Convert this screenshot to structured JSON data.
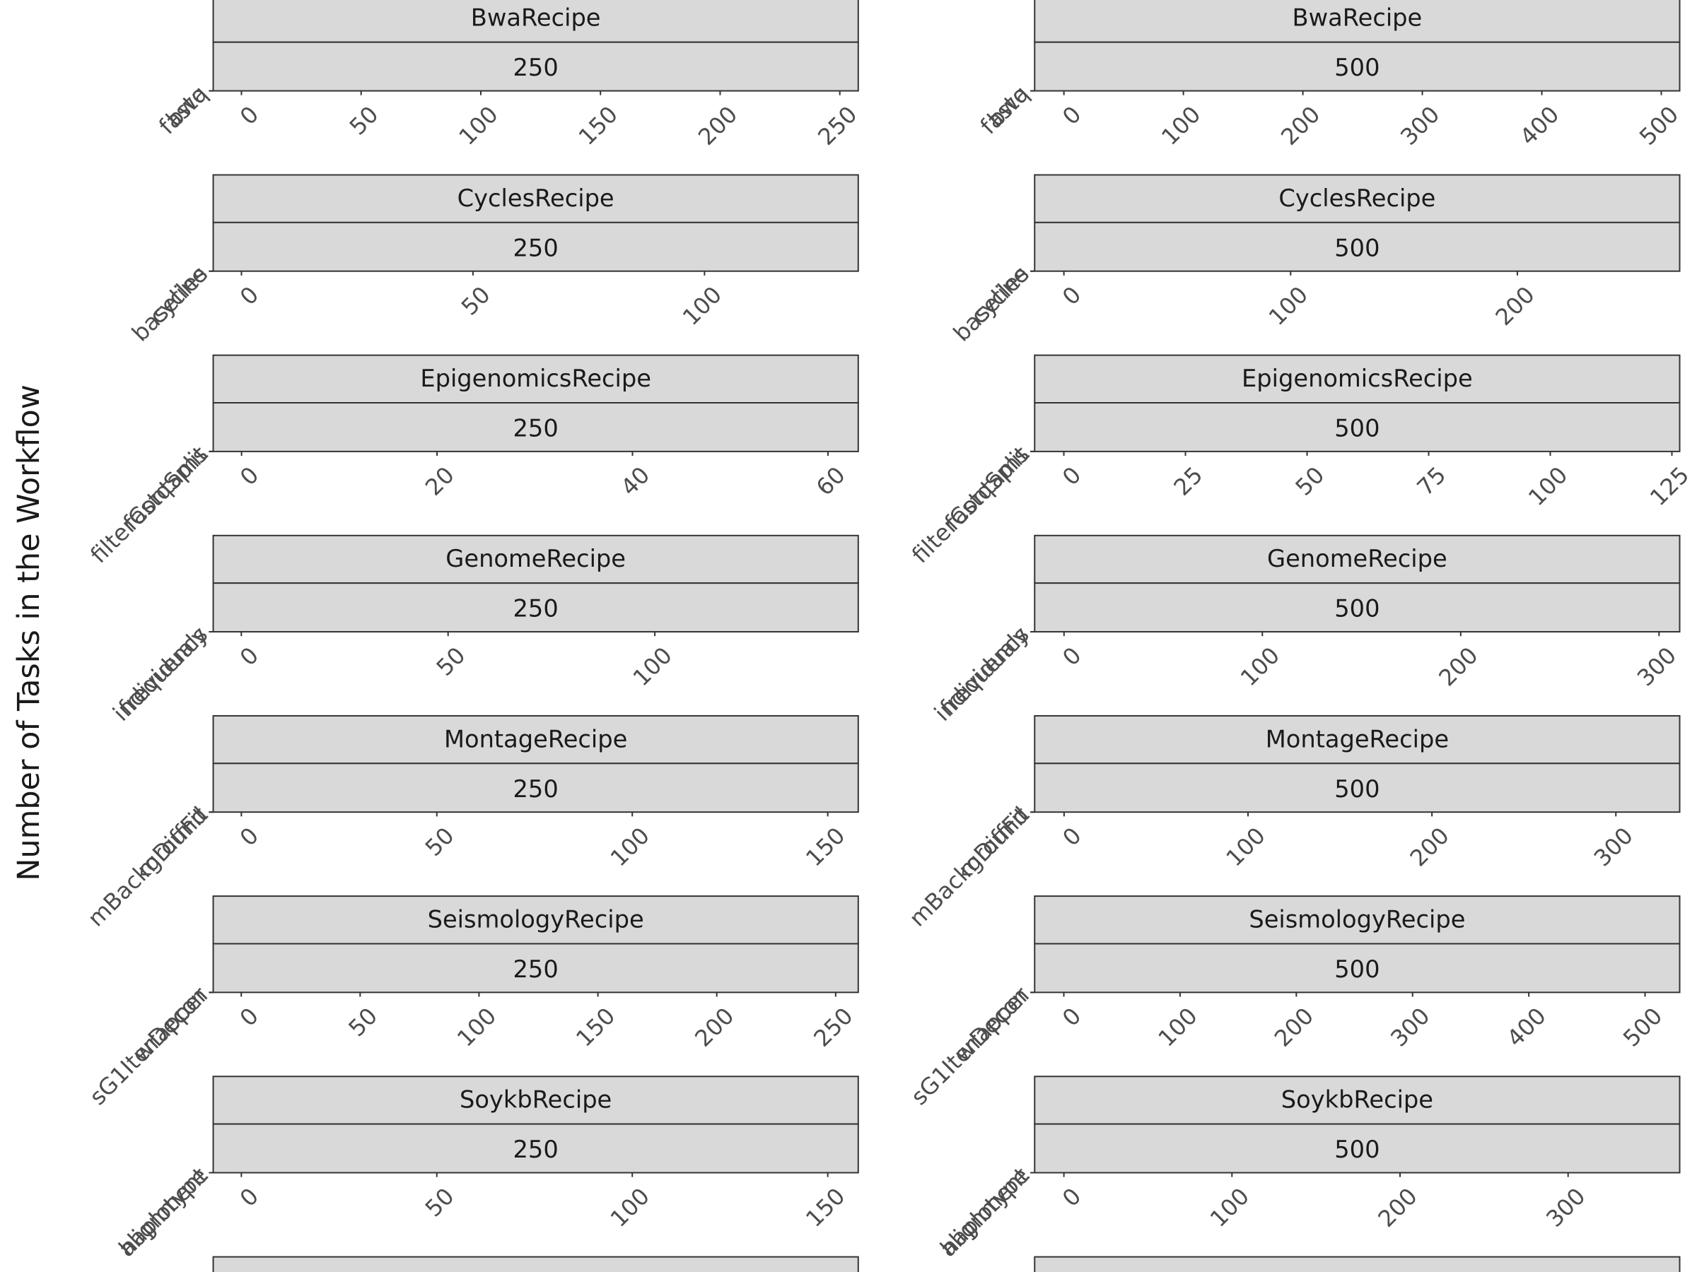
{
  "chart_data": {
    "type": "bar",
    "y_label": "Number of Tasks in the Workflow",
    "facets": [
      {
        "recipe": "BwaRecipe",
        "size": "250",
        "xlim": [
          -11.8,
          257.7
        ],
        "xticks": [
          0,
          50,
          100,
          150,
          200,
          250
        ],
        "categories": [
          "fastq",
          "bwa"
        ]
      },
      {
        "recipe": "BwaRecipe",
        "size": "500",
        "xlim": [
          -24.5,
          515.4
        ],
        "xticks": [
          0,
          100,
          200,
          300,
          400,
          500
        ],
        "categories": [
          "fastq",
          "bwa"
        ]
      },
      {
        "recipe": "CyclesRecipe",
        "size": "250",
        "xlim": [
          -6.1,
          133.2
        ],
        "xticks": [
          0,
          50,
          100
        ],
        "categories": [
          "baseline",
          "cycles"
        ]
      },
      {
        "recipe": "CyclesRecipe",
        "size": "500",
        "xlim": [
          -12.9,
          271.6
        ],
        "xticks": [
          0,
          100,
          200
        ],
        "categories": [
          "baseline",
          "cycles"
        ]
      },
      {
        "recipe": "EpigenomicsRecipe",
        "size": "250",
        "xlim": [
          -2.9,
          63.1
        ],
        "xticks": [
          0,
          20,
          40,
          60
        ],
        "categories": [
          "filterContams",
          "fastqSplit"
        ]
      },
      {
        "recipe": "EpigenomicsRecipe",
        "size": "500",
        "xlim": [
          -6.0,
          126.6
        ],
        "xticks": [
          0,
          25,
          50,
          75,
          100,
          125
        ],
        "categories": [
          "filterContams",
          "fastqSplit"
        ]
      },
      {
        "recipe": "GenomeRecipe",
        "size": "250",
        "xlim": [
          -6.8,
          149.2
        ],
        "xticks": [
          0,
          50,
          100
        ],
        "categories": [
          "individuals",
          "frequency"
        ]
      },
      {
        "recipe": "GenomeRecipe",
        "size": "500",
        "xlim": [
          -14.8,
          310.4
        ],
        "xticks": [
          0,
          100,
          200,
          300
        ],
        "categories": [
          "individuals",
          "frequency"
        ]
      },
      {
        "recipe": "MontageRecipe",
        "size": "250",
        "xlim": [
          -7.2,
          157.8
        ],
        "xticks": [
          0,
          50,
          100,
          150
        ],
        "categories": [
          "mBackground",
          "mDiffFit"
        ]
      },
      {
        "recipe": "MontageRecipe",
        "size": "500",
        "xlim": [
          -16.0,
          334.7
        ],
        "xticks": [
          0,
          100,
          200,
          300
        ],
        "categories": [
          "mBackground",
          "mDiffFit"
        ]
      },
      {
        "recipe": "SeismologyRecipe",
        "size": "250",
        "xlim": [
          -11.8,
          259.5
        ],
        "xticks": [
          0,
          50,
          100,
          150,
          200,
          250
        ],
        "categories": [
          "sG1IterDecon",
          "wrapper"
        ]
      },
      {
        "recipe": "SeismologyRecipe",
        "size": "500",
        "xlim": [
          -25.1,
          529.8
        ],
        "xticks": [
          0,
          100,
          200,
          300,
          400,
          500
        ],
        "categories": [
          "sG1IterDecon",
          "wrapper"
        ]
      },
      {
        "recipe": "SoykbRecipe",
        "size": "250",
        "xlim": [
          -7.2,
          157.8
        ],
        "xticks": [
          0,
          50,
          100,
          150
        ],
        "categories": [
          "alignment",
          "haplotype"
        ]
      },
      {
        "recipe": "SoykbRecipe",
        "size": "500",
        "xlim": [
          -17.4,
          366.4
        ],
        "xticks": [
          0,
          100,
          200,
          300
        ],
        "categories": [
          "alignment",
          "haplotype"
        ]
      }
    ]
  }
}
